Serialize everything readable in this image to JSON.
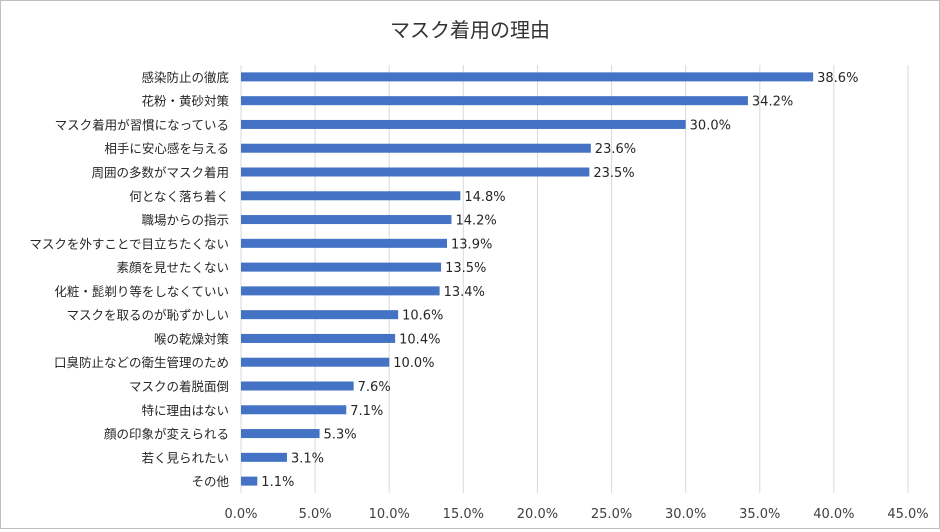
{
  "chart_data": {
    "type": "bar",
    "orientation": "horizontal",
    "title": "マスク着用の理由",
    "xlabel": "",
    "ylabel": "",
    "xlim": [
      0,
      45
    ],
    "x_ticks": [
      "0.0%",
      "5.0%",
      "10.0%",
      "15.0%",
      "20.0%",
      "25.0%",
      "30.0%",
      "35.0%",
      "40.0%",
      "45.0%"
    ],
    "grid": "vertical",
    "legend": "none",
    "bar_color": "#4472C4",
    "categories": [
      "感染防止の徹底",
      "花粉・黄砂対策",
      "マスク着用が習慣になっている",
      "相手に安心感を与える",
      "周囲の多数がマスク着用",
      "何となく落ち着く",
      "職場からの指示",
      "マスクを外すことで目立ちたくない",
      "素顔を見せたくない",
      "化粧・髭剃り等をしなくていい",
      "マスクを取るのが恥ずかしい",
      "喉の乾燥対策",
      "口臭防止などの衛生管理のため",
      "マスクの着脱面倒",
      "特に理由はない",
      "顔の印象が変えられる",
      "若く見られたい",
      "その他"
    ],
    "values": [
      38.6,
      34.2,
      30.0,
      23.6,
      23.5,
      14.8,
      14.2,
      13.9,
      13.5,
      13.4,
      10.6,
      10.4,
      10.0,
      7.6,
      7.1,
      5.3,
      3.1,
      1.1
    ],
    "data_labels": [
      "38.6%",
      "34.2%",
      "30.0%",
      "23.6%",
      "23.5%",
      "14.8%",
      "14.2%",
      "13.9%",
      "13.5%",
      "13.4%",
      "10.6%",
      "10.4%",
      "10.0%",
      "7.6%",
      "7.1%",
      "5.3%",
      "3.1%",
      "1.1%"
    ]
  }
}
